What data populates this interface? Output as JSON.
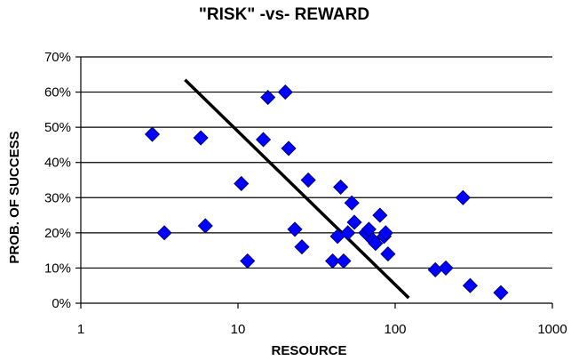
{
  "chart_data": {
    "type": "scatter",
    "title": "\"RISK\" -vs- REWARD",
    "xlabel": "RESOURCE",
    "ylabel": "PROB. OF SUCCESS",
    "x_scale": "log",
    "xlim": [
      1,
      1000
    ],
    "ylim": [
      0,
      0.7
    ],
    "x_ticks": [
      1,
      10,
      100,
      1000
    ],
    "x_tick_labels": [
      "1",
      "10",
      "100",
      "1000"
    ],
    "y_ticks": [
      0,
      0.1,
      0.2,
      0.3,
      0.4,
      0.5,
      0.6,
      0.7
    ],
    "y_tick_labels": [
      "0%",
      "10%",
      "20%",
      "30%",
      "40%",
      "50%",
      "60%",
      "70%"
    ],
    "grid": "horizontal",
    "legend": "none",
    "marker_color": "#0000ff",
    "marker_shape": "diamond",
    "trend_color": "#000000",
    "series": [
      {
        "points": [
          [
            2.85,
            0.48
          ],
          [
            3.4,
            0.2
          ],
          [
            5.8,
            0.47
          ],
          [
            6.2,
            0.22
          ],
          [
            10.5,
            0.34
          ],
          [
            11.5,
            0.12
          ],
          [
            14.5,
            0.465
          ],
          [
            15.5,
            0.585
          ],
          [
            20,
            0.6
          ],
          [
            21,
            0.44
          ],
          [
            23,
            0.21
          ],
          [
            25.5,
            0.16
          ],
          [
            28,
            0.35
          ],
          [
            40,
            0.12
          ],
          [
            43,
            0.19
          ],
          [
            45,
            0.33
          ],
          [
            47,
            0.12
          ],
          [
            50,
            0.2
          ],
          [
            53,
            0.285
          ],
          [
            55,
            0.23
          ],
          [
            65,
            0.2
          ],
          [
            68,
            0.21
          ],
          [
            72,
            0.18
          ],
          [
            75,
            0.17
          ],
          [
            80,
            0.25
          ],
          [
            85,
            0.19
          ],
          [
            87,
            0.2
          ],
          [
            90,
            0.14
          ],
          [
            180,
            0.095
          ],
          [
            210,
            0.1
          ],
          [
            270,
            0.3
          ],
          [
            300,
            0.05
          ],
          [
            470,
            0.03
          ]
        ]
      }
    ],
    "trendline": [
      [
        4.6,
        0.635
      ],
      [
        122,
        0.015
      ]
    ]
  }
}
